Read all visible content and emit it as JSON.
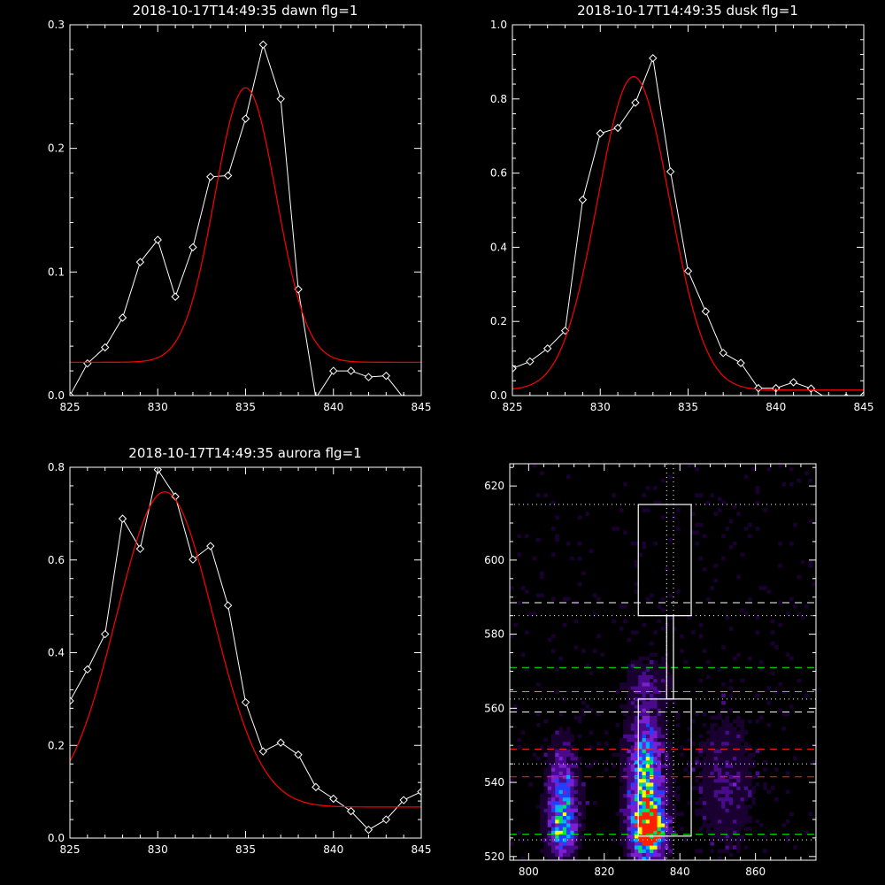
{
  "colors": {
    "background": "#000000",
    "axes": "#ffffff",
    "data": "#ffffff",
    "fit": "#ff0000",
    "green": "#00ff00"
  },
  "chart_data": [
    {
      "type": "line",
      "title": "2018-10-17T14:49:35 dawn flg=1",
      "xlim": [
        825,
        845
      ],
      "ylim": [
        0,
        0.3
      ],
      "xticks": [
        825,
        830,
        835,
        840,
        845
      ],
      "yticks": [
        0.0,
        0.1,
        0.2,
        0.3
      ],
      "ytick_labels": [
        "0.0",
        "0.1",
        "0.2",
        "0.3"
      ],
      "series": [
        {
          "style": "data-diamonds",
          "x": [
            825,
            826,
            827,
            828,
            829,
            830,
            831,
            832,
            833,
            834,
            835,
            836,
            837,
            838,
            839,
            840,
            841,
            842,
            843,
            844,
            845
          ],
          "y": [
            0.0,
            0.026,
            0.039,
            0.063,
            0.108,
            0.126,
            0.08,
            0.12,
            0.177,
            0.178,
            0.224,
            0.284,
            0.24,
            0.086,
            -0.002,
            0.02,
            0.02,
            0.015,
            0.016,
            -0.002,
            -0.005
          ]
        },
        {
          "style": "gaussian-fit",
          "amplitude": 0.222,
          "center": 835.0,
          "sigma": 1.75,
          "offset": 0.027
        }
      ]
    },
    {
      "type": "line",
      "title": "2018-10-17T14:49:35 dusk flg=1",
      "xlim": [
        825,
        845
      ],
      "ylim": [
        0,
        1.0
      ],
      "xticks": [
        825,
        830,
        835,
        840,
        845
      ],
      "yticks": [
        0.0,
        0.2,
        0.4,
        0.6,
        0.8,
        1.0
      ],
      "ytick_labels": [
        "0.0",
        "0.2",
        "0.4",
        "0.6",
        "0.8",
        "1.0"
      ],
      "series": [
        {
          "style": "data-diamonds",
          "x": [
            825,
            826,
            827,
            828,
            829,
            830,
            831,
            832,
            833,
            834,
            835,
            836,
            837,
            838,
            839,
            840,
            841,
            842,
            843,
            844,
            845
          ],
          "y": [
            0.073,
            0.092,
            0.127,
            0.175,
            0.528,
            0.707,
            0.722,
            0.79,
            0.91,
            0.604,
            0.336,
            0.227,
            0.115,
            0.088,
            0.02,
            0.02,
            0.036,
            0.019,
            -0.01,
            -0.005,
            0.0
          ]
        },
        {
          "style": "gaussian-fit",
          "amplitude": 0.845,
          "center": 831.9,
          "sigma": 2.05,
          "offset": 0.015
        }
      ]
    },
    {
      "type": "line",
      "title": "2018-10-17T14:49:35 aurora flg=1",
      "xlim": [
        825,
        845
      ],
      "ylim": [
        0,
        0.8
      ],
      "xticks": [
        825,
        830,
        835,
        840,
        845
      ],
      "yticks": [
        0.0,
        0.2,
        0.4,
        0.6,
        0.8
      ],
      "ytick_labels": [
        "0.0",
        "0.2",
        "0.4",
        "0.6",
        "0.8"
      ],
      "series": [
        {
          "style": "data-diamonds",
          "x": [
            825,
            826,
            827,
            828,
            829,
            830,
            831,
            832,
            833,
            834,
            835,
            836,
            837,
            838,
            839,
            840,
            841,
            842,
            843,
            844,
            845
          ],
          "y": [
            0.296,
            0.364,
            0.44,
            0.689,
            0.624,
            0.795,
            0.737,
            0.601,
            0.63,
            0.502,
            0.293,
            0.187,
            0.206,
            0.18,
            0.11,
            0.085,
            0.058,
            0.018,
            0.04,
            0.082,
            0.1
          ]
        },
        {
          "style": "gaussian-fit",
          "amplitude": 0.68,
          "center": 830.4,
          "sigma": 2.75,
          "offset": 0.067
        }
      ]
    },
    {
      "type": "heatmap",
      "title": "",
      "xlim": [
        795,
        876
      ],
      "ylim": [
        519,
        626
      ],
      "xticks": [
        800,
        820,
        840,
        860
      ],
      "yticks": [
        520,
        540,
        560,
        580,
        600,
        620
      ],
      "colormap": [
        "#1a0030",
        "#4a0a8c",
        "#7a20d0",
        "#2040ff",
        "#00b0ff",
        "#00e060",
        "#ffff00",
        "#ff2000"
      ],
      "hotspots": [
        {
          "x": 831,
          "y": 538,
          "sx": 3,
          "sy": 13,
          "peak": 0.65
        },
        {
          "x": 832,
          "y": 528,
          "sx": 2.5,
          "sy": 4,
          "peak": 1.0
        },
        {
          "x": 809,
          "y": 534,
          "sx": 2.5,
          "sy": 9,
          "peak": 0.5
        },
        {
          "x": 809,
          "y": 527,
          "sx": 2,
          "sy": 3,
          "peak": 0.35
        },
        {
          "x": 852,
          "y": 540,
          "sx": 5,
          "sy": 12,
          "peak": 0.13
        },
        {
          "x": 832,
          "y": 567,
          "sx": 4,
          "sy": 4,
          "peak": 0.12
        }
      ],
      "background_level": 0.05,
      "boxes": [
        {
          "x0": 829.0,
          "x1": 843.0,
          "y0": 585.0,
          "y1": 615.0
        },
        {
          "x0": 836.5,
          "x1": 838.3,
          "y0": 562.5,
          "y1": 585.0
        },
        {
          "x0": 829.0,
          "x1": 843.0,
          "y0": 525.5,
          "y1": 562.5
        }
      ],
      "hlines": [
        {
          "y": 615.0,
          "color": "#ffffff",
          "dash": "dot"
        },
        {
          "y": 588.5,
          "color": "#ffffff",
          "dash": "dash"
        },
        {
          "y": 585.0,
          "color": "#ffffff",
          "dash": "dot"
        },
        {
          "y": 571.0,
          "color": "#00ff00",
          "dash": "dash"
        },
        {
          "y": 564.5,
          "color": "#00ff00",
          "dash": "dash"
        },
        {
          "y": 562.5,
          "color": "#ffffff",
          "dash": "dot"
        },
        {
          "y": 559.0,
          "color": "#ffffff",
          "dash": "dash"
        },
        {
          "y": 549.0,
          "color": "#ff2020",
          "dash": "dash"
        },
        {
          "y": 545.0,
          "color": "#ffffff",
          "dash": "dot"
        },
        {
          "y": 541.5,
          "color": "#ff2020",
          "dash": "dash"
        },
        {
          "y": 526.0,
          "color": "#00ff00",
          "dash": "dash"
        },
        {
          "y": 524.5,
          "color": "#ffffff",
          "dash": "dot"
        }
      ],
      "vlines": [
        {
          "x": 836.5,
          "color": "#ffffff",
          "dash": "dot"
        },
        {
          "x": 838.3,
          "color": "#ffffff",
          "dash": "dot"
        }
      ]
    }
  ]
}
